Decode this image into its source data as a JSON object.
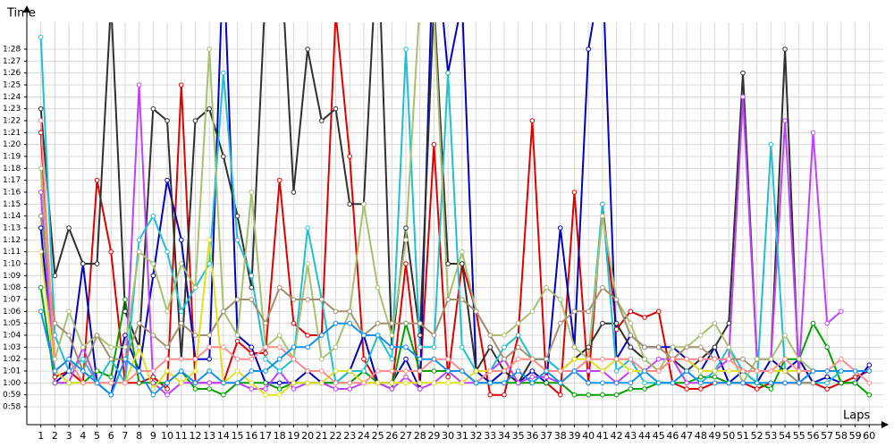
{
  "chart_data": {
    "type": "line",
    "y_label": "Time",
    "x_label": "Laps",
    "grid": true,
    "x": [
      1,
      2,
      3,
      4,
      5,
      6,
      7,
      8,
      9,
      10,
      11,
      12,
      13,
      14,
      15,
      16,
      17,
      18,
      19,
      20,
      21,
      22,
      23,
      24,
      25,
      26,
      27,
      28,
      29,
      30,
      31,
      32,
      33,
      34,
      35,
      36,
      37,
      38,
      39,
      40,
      41,
      42,
      43,
      44,
      45,
      46,
      47,
      48,
      49,
      50,
      51,
      52,
      53,
      54,
      55,
      56,
      57,
      58,
      59,
      60
    ],
    "xlim": [
      0,
      61
    ],
    "xticks": [
      1,
      2,
      3,
      4,
      5,
      6,
      7,
      8,
      9,
      10,
      11,
      12,
      13,
      14,
      15,
      16,
      17,
      18,
      19,
      20,
      21,
      22,
      23,
      24,
      25,
      26,
      27,
      28,
      29,
      30,
      31,
      32,
      33,
      34,
      35,
      36,
      37,
      38,
      39,
      40,
      41,
      42,
      43,
      44,
      45,
      46,
      47,
      48,
      49,
      50,
      51,
      52,
      53,
      54,
      55,
      56,
      57,
      58,
      59,
      60
    ],
    "ylim": [
      56.5,
      90.25
    ],
    "yticks": [
      {
        "value": 58,
        "label": "0:58"
      },
      {
        "value": 59,
        "label": "0:59"
      },
      {
        "value": 60,
        "label": "1:00"
      },
      {
        "value": 61,
        "label": "1:01"
      },
      {
        "value": 62,
        "label": "1:02"
      },
      {
        "value": 63,
        "label": "1:03"
      },
      {
        "value": 64,
        "label": "1:04"
      },
      {
        "value": 65,
        "label": "1:05"
      },
      {
        "value": 66,
        "label": "1:06"
      },
      {
        "value": 67,
        "label": "1:07"
      },
      {
        "value": 68,
        "label": "1:08"
      },
      {
        "value": 69,
        "label": "1:09"
      },
      {
        "value": 70,
        "label": "1:10"
      },
      {
        "value": 71,
        "label": "1:11"
      },
      {
        "value": 72,
        "label": "1:12"
      },
      {
        "value": 73,
        "label": "1:13"
      },
      {
        "value": 74,
        "label": "1:14"
      },
      {
        "value": 75,
        "label": "1:15"
      },
      {
        "value": 76,
        "label": "1:16"
      },
      {
        "value": 77,
        "label": "1:17"
      },
      {
        "value": 78,
        "label": "1:18"
      },
      {
        "value": 79,
        "label": "1:19"
      },
      {
        "value": 80,
        "label": "1:20"
      },
      {
        "value": 81,
        "label": "1:21"
      },
      {
        "value": 82,
        "label": "1:22"
      },
      {
        "value": 83,
        "label": "1:23"
      },
      {
        "value": 84,
        "label": "1:24"
      },
      {
        "value": 85,
        "label": "1:25"
      },
      {
        "value": 86,
        "label": "1:26"
      },
      {
        "value": 87,
        "label": "1:27"
      },
      {
        "value": 88,
        "label": "1:28"
      }
    ],
    "series": [
      {
        "color": "#e00000",
        "values": [
          81,
          60.5,
          61,
          60,
          77,
          71,
          60,
          60,
          60.5,
          59.5,
          85,
          60,
          60,
          60,
          63.5,
          62.5,
          62.5,
          77,
          65,
          64,
          64,
          91,
          79,
          62,
          60,
          59.5,
          70,
          60,
          80,
          60.5,
          70,
          66,
          59,
          59,
          64,
          82,
          60,
          59,
          76,
          60,
          75,
          64.5,
          66,
          65.5,
          66,
          60,
          59.5,
          59.5,
          60,
          60,
          60,
          59.5,
          60,
          60,
          60,
          60,
          59.5,
          60,
          60.5,
          61
        ]
      },
      {
        "color": "#0000c0",
        "values": [
          73,
          60,
          61,
          70,
          60,
          59,
          64,
          61,
          69,
          77,
          72,
          62,
          62,
          96,
          64,
          63,
          60,
          60,
          60,
          61,
          60,
          60,
          61,
          64,
          60,
          60,
          62,
          59.5,
          99,
          86,
          92,
          61,
          60,
          61,
          60,
          61,
          60,
          73,
          63,
          88,
          95,
          62,
          64,
          63,
          63,
          63,
          62,
          61,
          63,
          60,
          61,
          60,
          62,
          61,
          62,
          60,
          60.5,
          60,
          60,
          61.5
        ]
      },
      {
        "color": "#00a000",
        "values": [
          68,
          60,
          60,
          60,
          61,
          60.5,
          67,
          60,
          60,
          60,
          61,
          59.5,
          59.5,
          59,
          60,
          60,
          60,
          59.5,
          60,
          60,
          60,
          60,
          60,
          61,
          60,
          59.5,
          65,
          61,
          61,
          61,
          61,
          60,
          60,
          60,
          60,
          60,
          60,
          60,
          59,
          59,
          59,
          59,
          59.5,
          59.5,
          60,
          60,
          60,
          60.5,
          60.5,
          60,
          60,
          60,
          59.5,
          62,
          62,
          65,
          63,
          60,
          60,
          59
        ]
      },
      {
        "color": "#303030",
        "values": [
          83,
          69,
          73,
          70,
          70,
          92,
          66,
          63,
          83,
          82,
          62,
          82,
          83,
          79,
          74,
          68,
          93,
          98,
          76,
          88,
          82,
          83,
          75,
          75,
          98,
          63,
          73,
          64,
          92,
          70,
          70,
          61,
          63,
          61,
          60,
          62,
          62,
          61,
          62,
          63,
          65,
          65,
          63,
          62,
          61,
          62,
          61,
          62,
          63,
          65,
          86,
          62,
          62,
          88,
          60,
          61,
          null,
          null,
          null,
          null
        ]
      },
      {
        "color": "#c040ff",
        "values": [
          76,
          60,
          60,
          63,
          60,
          60,
          60,
          85,
          60,
          59,
          60,
          60,
          60,
          60,
          60,
          59.5,
          59.5,
          61,
          59.5,
          60,
          60,
          59.5,
          59.5,
          60,
          60,
          59.5,
          60.5,
          59.5,
          60,
          61,
          60,
          60,
          61,
          62,
          60,
          60.5,
          60.5,
          60,
          61,
          61,
          61,
          60,
          61,
          61,
          62,
          62,
          60,
          60,
          61,
          62,
          84,
          62,
          62,
          82,
          61,
          81,
          65,
          66,
          null,
          null
        ]
      },
      {
        "color": "#20c0d0",
        "values": [
          89,
          64,
          61,
          62,
          60,
          62,
          60,
          72,
          74,
          71,
          66,
          68,
          70,
          86,
          72,
          69,
          62,
          61,
          62,
          73,
          67,
          60,
          61,
          61,
          64,
          62,
          88,
          63,
          63,
          86,
          63,
          61,
          61,
          63,
          64,
          62,
          62,
          61,
          61,
          62,
          75,
          61,
          62,
          60,
          60,
          60,
          61,
          60,
          61,
          63,
          61,
          60,
          80,
          61,
          60,
          60,
          60,
          61,
          null,
          null
        ]
      },
      {
        "color": "#a8c070",
        "values": [
          78,
          62,
          66,
          63,
          64,
          63,
          63,
          71,
          70,
          66,
          70,
          68,
          88,
          66,
          64,
          76,
          63,
          64,
          62,
          70,
          62,
          63,
          66,
          75,
          68,
          64,
          72,
          92,
          91,
          67,
          71,
          66,
          64,
          64,
          65,
          66,
          68,
          67,
          63,
          62,
          74,
          67,
          65,
          62,
          61,
          63,
          63,
          64,
          65,
          63,
          60,
          62,
          62,
          64,
          62,
          61,
          null,
          null,
          null,
          null
        ]
      },
      {
        "color": "#a09070",
        "values": [
          74,
          65,
          64,
          61,
          64,
          62,
          62,
          65,
          64,
          63,
          65,
          64,
          64,
          66,
          67,
          67,
          65,
          68,
          67,
          67,
          67,
          66,
          66,
          64,
          65,
          65,
          65,
          65,
          64,
          67,
          67,
          66,
          64,
          62,
          63,
          62,
          62,
          65,
          66,
          66,
          68,
          67,
          64,
          63,
          63,
          62,
          63,
          63,
          62,
          62,
          62,
          61,
          61,
          61,
          60,
          60,
          null,
          null,
          null,
          null
        ]
      },
      {
        "color": "#e0e020",
        "values": [
          71,
          61,
          60,
          60,
          60,
          60,
          60,
          63,
          59.5,
          61,
          60,
          61,
          72,
          60,
          61,
          60,
          59,
          59,
          60,
          60,
          60,
          61,
          61,
          60,
          60,
          60,
          60,
          60,
          60,
          60,
          60,
          61,
          61,
          61,
          62,
          62,
          61,
          61,
          62,
          62,
          61,
          62,
          61,
          61,
          61,
          62,
          62,
          61,
          61,
          61,
          61,
          61,
          61,
          61,
          61,
          61,
          null,
          null,
          null,
          null
        ]
      },
      {
        "color": "#ff8c8c",
        "values": [
          82,
          61,
          62,
          60,
          60,
          60,
          60,
          61,
          61,
          62,
          62,
          62,
          63,
          63,
          62,
          62,
          63,
          63,
          62,
          61,
          61,
          60,
          60,
          60,
          61,
          61,
          61,
          61,
          62,
          62,
          61,
          60,
          61,
          61,
          62,
          62,
          61,
          61,
          61,
          62,
          62,
          62,
          62,
          61,
          61,
          62,
          62,
          62,
          62,
          62,
          61,
          61,
          61,
          62,
          61,
          61,
          61,
          62,
          61,
          60
        ]
      },
      {
        "color": "#1090f0",
        "values": [
          66,
          61,
          62,
          61,
          60,
          59,
          62,
          61,
          59,
          60,
          61,
          60,
          61,
          60,
          60,
          61,
          61,
          62,
          63,
          63,
          64,
          65,
          65,
          64,
          64,
          63,
          63,
          62,
          62,
          61,
          61,
          60,
          60,
          60,
          61,
          60,
          61,
          60,
          61,
          60,
          60,
          60,
          60,
          61,
          60,
          60,
          61,
          60,
          60,
          60,
          60,
          60,
          60,
          60,
          60,
          61,
          61,
          61,
          61,
          61
        ]
      }
    ]
  }
}
